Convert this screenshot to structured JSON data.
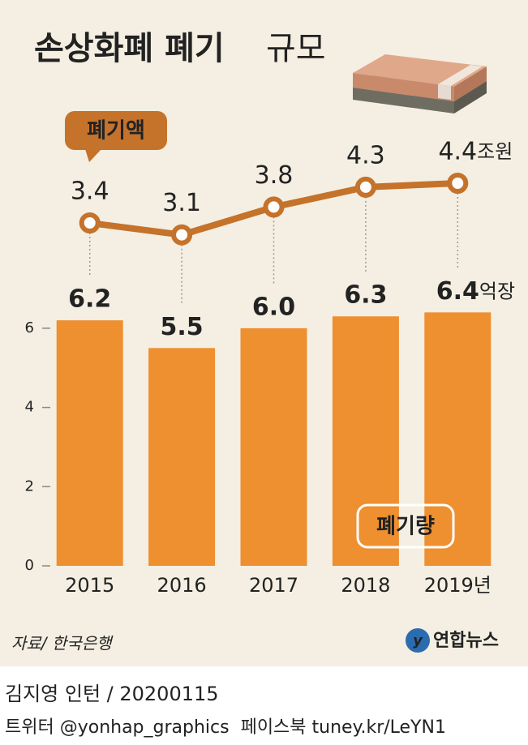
{
  "chart_data": {
    "type": "bar",
    "title": "손상화폐 폐기",
    "title_suffix": "규모",
    "categories": [
      "2015",
      "2016",
      "2017",
      "2018",
      "2019년"
    ],
    "series": [
      {
        "name": "폐기량",
        "type": "bar",
        "color": "#ee8f30",
        "values": [
          6.2,
          5.5,
          6.0,
          6.3,
          6.4
        ],
        "value_labels": [
          "6.2",
          "5.5",
          "6.0",
          "6.3",
          "6.4"
        ],
        "unit": "억장"
      },
      {
        "name": "폐기액",
        "type": "line",
        "axis": "y2",
        "color": "#c5722b",
        "values": [
          3.4,
          3.1,
          3.8,
          4.3,
          4.4
        ],
        "unit": "조원"
      }
    ],
    "ylim": [
      0,
      6.6
    ],
    "yticks": [
      0,
      2,
      4,
      6
    ],
    "y2lim": [
      0,
      5
    ],
    "source": "자료/ 한국은행",
    "logo": "연합뉴스",
    "credit": "김지영 인턴 / 20200115",
    "social": "트위터 @yonhap_graphics  페이스북 tuney.kr/LeYN1"
  }
}
